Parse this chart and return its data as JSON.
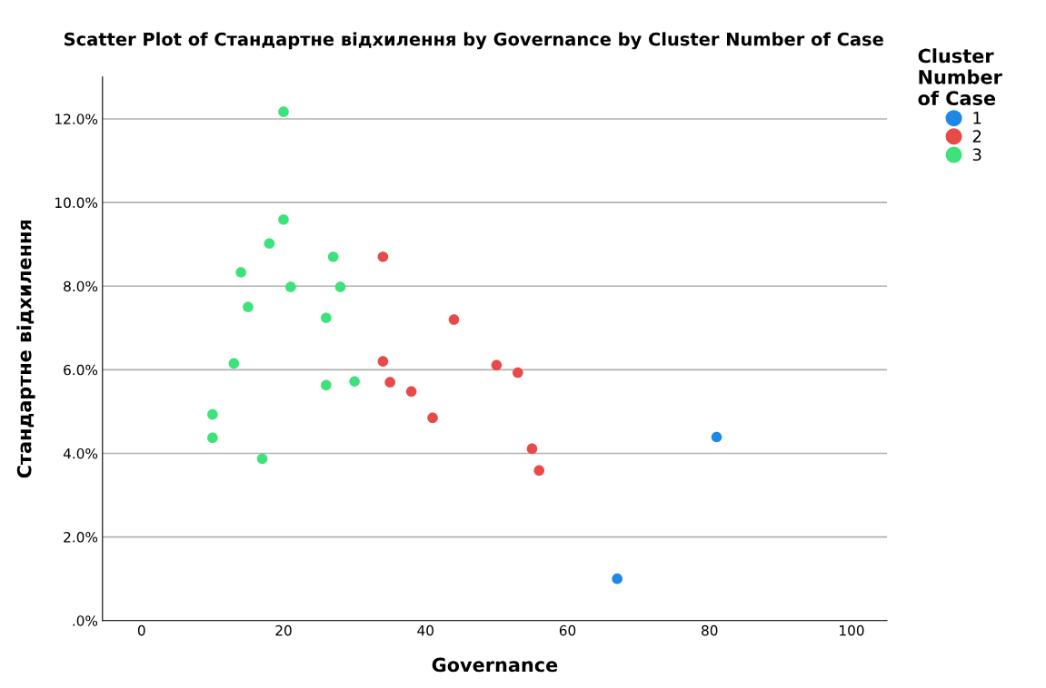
{
  "chart_data": {
    "type": "scatter",
    "title": "Scatter Plot of Стандартне відхилення by Governance by Cluster Number of Case",
    "xlabel": "Governance",
    "ylabel": "Стандартне відхилення",
    "legend_title": "Cluster\nNumber\nof Case",
    "series": [
      {
        "name": "1",
        "color": "#1e88e5",
        "x": [
          81,
          67
        ],
        "values": [
          4.39,
          1.0
        ]
      },
      {
        "name": "2",
        "color": "#e84a4a",
        "x": [
          34,
          44,
          34,
          35,
          38,
          41,
          50,
          53,
          55,
          56
        ],
        "values": [
          8.7,
          7.2,
          6.2,
          5.7,
          5.48,
          4.85,
          6.11,
          5.93,
          4.11,
          3.59
        ]
      },
      {
        "name": "3",
        "color": "#3ee27a",
        "x": [
          20,
          20,
          18,
          14,
          27,
          21,
          28,
          15,
          26,
          13,
          26,
          30,
          10,
          10,
          17
        ],
        "values": [
          12.17,
          9.59,
          9.02,
          8.33,
          8.7,
          7.98,
          7.98,
          7.5,
          7.24,
          6.15,
          5.63,
          5.72,
          4.93,
          4.37,
          3.87
        ]
      }
    ],
    "xlim": [
      -5.5,
      105
    ],
    "xticks": [
      0,
      20,
      40,
      60,
      80,
      100
    ],
    "ylim": [
      0,
      13
    ],
    "yticks": [
      {
        "value": 0,
        "label": ".0%"
      },
      {
        "value": 2,
        "label": "2.0%"
      },
      {
        "value": 4,
        "label": "4.0%"
      },
      {
        "value": 6,
        "label": "6.0%"
      },
      {
        "value": 8,
        "label": "8.0%"
      },
      {
        "value": 10,
        "label": "10.0%"
      },
      {
        "value": 12,
        "label": "12.0%"
      }
    ],
    "grid": "y",
    "legend": "top right",
    "marker": "circle"
  }
}
